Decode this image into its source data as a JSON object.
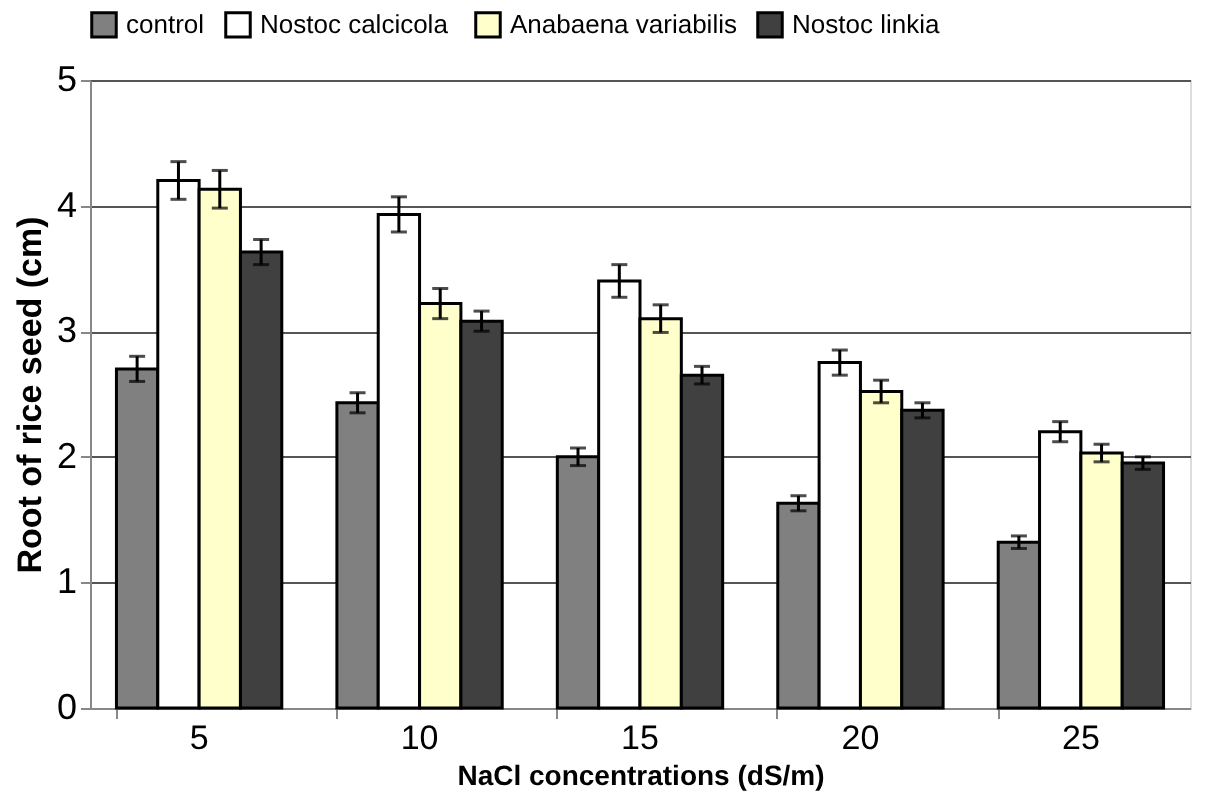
{
  "chart_data": {
    "type": "bar",
    "xlabel": "NaCl concentrations (dS/m)",
    "ylabel": "Root of rice seed (cm)",
    "categories": [
      "5",
      "10",
      "15",
      "20",
      "25"
    ],
    "series": [
      {
        "name": "control",
        "color": "#808080",
        "values": [
          2.7,
          2.43,
          2.0,
          1.63,
          1.32
        ],
        "errors": [
          0.1,
          0.08,
          0.07,
          0.06,
          0.05
        ]
      },
      {
        "name": "Nostoc  calcicola",
        "color": "#ffffff",
        "values": [
          4.2,
          3.93,
          3.4,
          2.75,
          2.2
        ],
        "errors": [
          0.15,
          0.14,
          0.13,
          0.1,
          0.08
        ]
      },
      {
        "name": "Anabaena variabilis",
        "color": "#ffffcc",
        "values": [
          4.13,
          3.22,
          3.1,
          2.52,
          2.03
        ],
        "errors": [
          0.15,
          0.12,
          0.11,
          0.09,
          0.07
        ]
      },
      {
        "name": "Nostoc  linkia",
        "color": "#404040",
        "values": [
          3.63,
          3.08,
          2.65,
          2.37,
          1.95
        ],
        "errors": [
          0.1,
          0.08,
          0.07,
          0.06,
          0.05
        ]
      }
    ],
    "ylim": [
      0,
      5
    ],
    "yticks": [
      0,
      1,
      2,
      3,
      4,
      5
    ],
    "grid": "y",
    "legend": "top"
  }
}
